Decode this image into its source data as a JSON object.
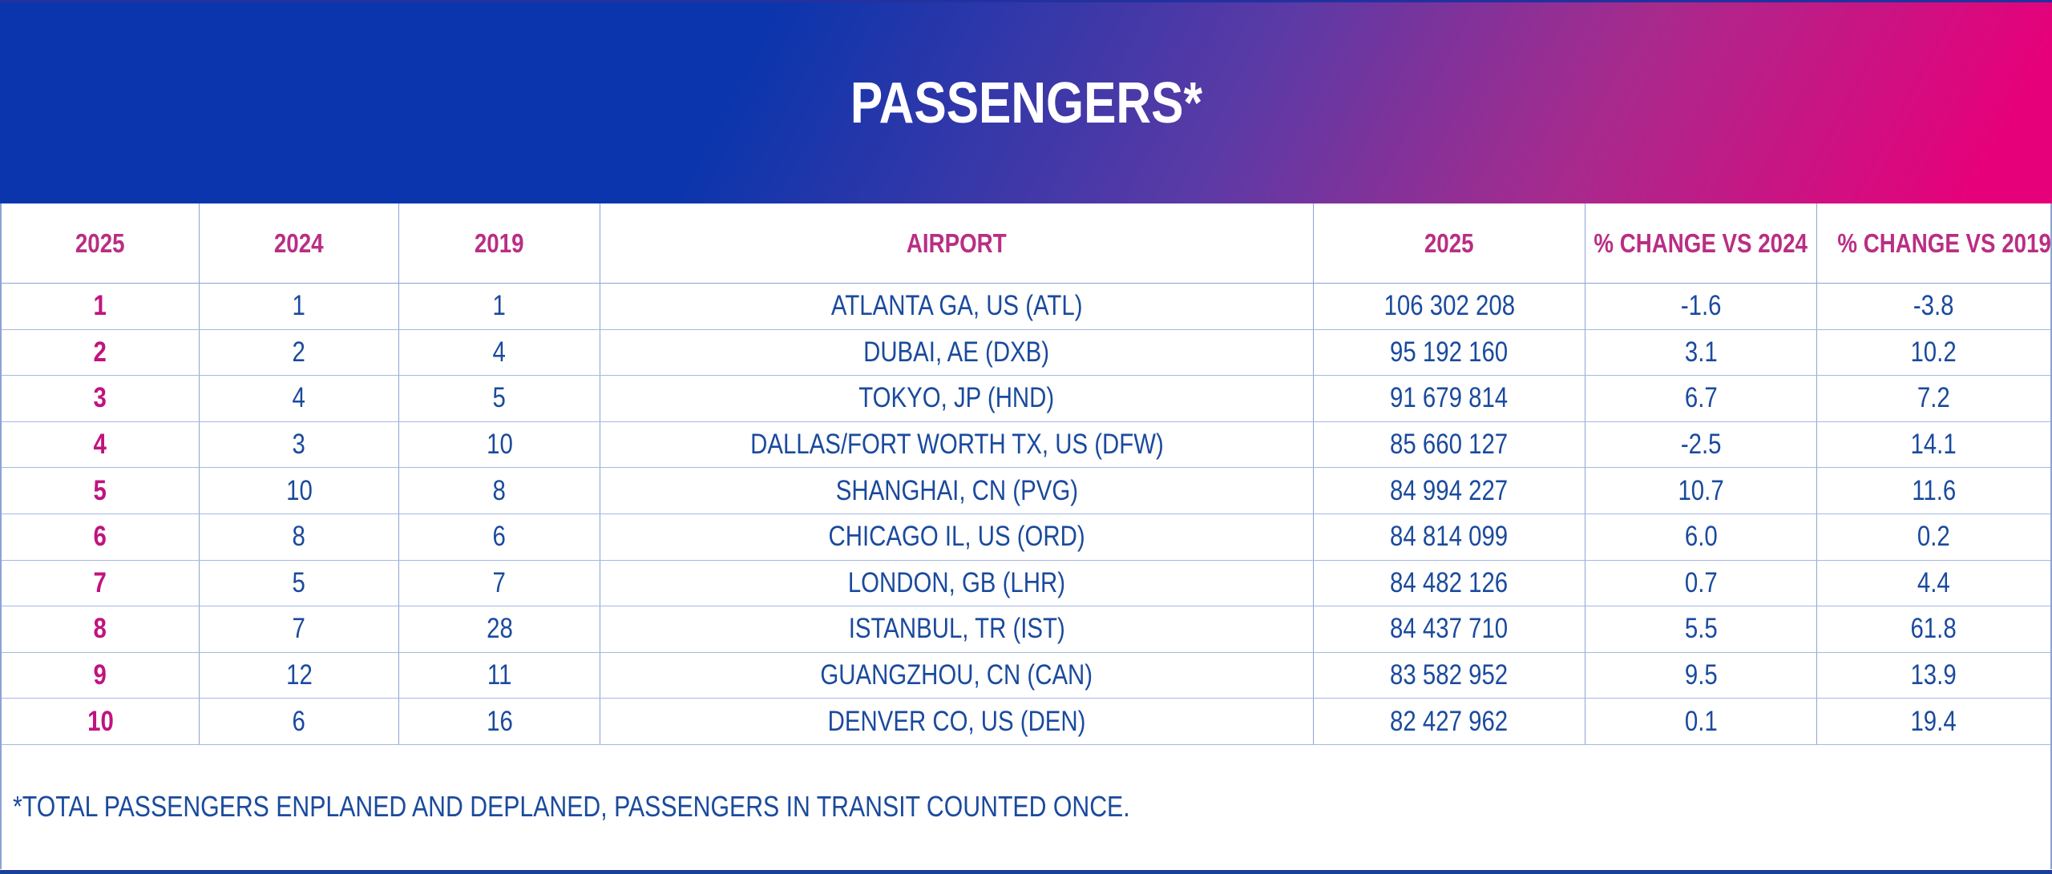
{
  "title": "PASSENGERS*",
  "footnote": "*TOTAL PASSENGERS ENPLANED AND DEPLANED, PASSENGERS IN TRANSIT COUNTED ONCE.",
  "table": {
    "headers": {
      "rank2025": "2025",
      "rank2024": "2024",
      "rank2019": "2019",
      "airport": "AIRPORT",
      "passengers2025": "2025",
      "chg2024": "% CHANGE VS 2024",
      "chg2019": "% CHANGE VS 2019"
    },
    "rows": [
      {
        "rank2025": "1",
        "rank2024": "1",
        "rank2019": "1",
        "airport": "ATLANTA GA, US (ATL)",
        "passengers2025": "106 302 208",
        "chg2024": "-1.6",
        "chg2019": "-3.8"
      },
      {
        "rank2025": "2",
        "rank2024": "2",
        "rank2019": "4",
        "airport": "DUBAI, AE (DXB)",
        "passengers2025": "95 192 160",
        "chg2024": "3.1",
        "chg2019": "10.2"
      },
      {
        "rank2025": "3",
        "rank2024": "4",
        "rank2019": "5",
        "airport": "TOKYO, JP (HND)",
        "passengers2025": "91 679 814",
        "chg2024": "6.7",
        "chg2019": "7.2"
      },
      {
        "rank2025": "4",
        "rank2024": "3",
        "rank2019": "10",
        "airport": "DALLAS/FORT WORTH TX, US (DFW)",
        "passengers2025": "85 660 127",
        "chg2024": "-2.5",
        "chg2019": "14.1"
      },
      {
        "rank2025": "5",
        "rank2024": "10",
        "rank2019": "8",
        "airport": "SHANGHAI, CN (PVG)",
        "passengers2025": "84 994 227",
        "chg2024": "10.7",
        "chg2019": "11.6"
      },
      {
        "rank2025": "6",
        "rank2024": "8",
        "rank2019": "6",
        "airport": "CHICAGO IL, US (ORD)",
        "passengers2025": "84 814 099",
        "chg2024": "6.0",
        "chg2019": "0.2"
      },
      {
        "rank2025": "7",
        "rank2024": "5",
        "rank2019": "7",
        "airport": "LONDON, GB (LHR)",
        "passengers2025": "84 482 126",
        "chg2024": "0.7",
        "chg2019": "4.4"
      },
      {
        "rank2025": "8",
        "rank2024": "7",
        "rank2019": "28",
        "airport": "ISTANBUL, TR (IST)",
        "passengers2025": "84 437 710",
        "chg2024": "5.5",
        "chg2019": "61.8"
      },
      {
        "rank2025": "9",
        "rank2024": "12",
        "rank2019": "11",
        "airport": "GUANGZHOU, CN (CAN)",
        "passengers2025": "83 582 952",
        "chg2024": "9.5",
        "chg2019": "13.9"
      },
      {
        "rank2025": "10",
        "rank2024": "6",
        "rank2019": "16",
        "airport": "DENVER CO, US (DEN)",
        "passengers2025": "82 427 962",
        "chg2024": "0.1",
        "chg2019": "19.4"
      }
    ]
  },
  "chart_data": {
    "type": "table",
    "title": "PASSENGERS*",
    "columns": [
      "RANK 2025",
      "RANK 2024",
      "RANK 2019",
      "AIRPORT",
      "PASSENGERS 2025",
      "% CHANGE VS 2024",
      "% CHANGE VS 2019"
    ],
    "rows": [
      [
        1,
        1,
        1,
        "ATLANTA GA, US (ATL)",
        106302208,
        -1.6,
        -3.8
      ],
      [
        2,
        2,
        4,
        "DUBAI, AE (DXB)",
        95192160,
        3.1,
        10.2
      ],
      [
        3,
        4,
        5,
        "TOKYO, JP (HND)",
        91679814,
        6.7,
        7.2
      ],
      [
        4,
        3,
        10,
        "DALLAS/FORT WORTH TX, US (DFW)",
        85660127,
        -2.5,
        14.1
      ],
      [
        5,
        10,
        8,
        "SHANGHAI, CN (PVG)",
        84994227,
        10.7,
        11.6
      ],
      [
        6,
        8,
        6,
        "CHICAGO IL, US (ORD)",
        84814099,
        6.0,
        0.2
      ],
      [
        7,
        5,
        7,
        "LONDON, GB (LHR)",
        84482126,
        0.7,
        4.4
      ],
      [
        8,
        7,
        28,
        "ISTANBUL, TR (IST)",
        84437710,
        5.5,
        61.8
      ],
      [
        9,
        12,
        11,
        "GUANGZHOU, CN (CAN)",
        83582952,
        9.5,
        13.9
      ],
      [
        10,
        6,
        16,
        "DENVER CO, US (DEN)",
        82427962,
        0.1,
        19.4
      ]
    ],
    "footnote": "*TOTAL PASSENGERS ENPLANED AND DEPLANED, PASSENGERS IN TRANSIT COUNTED ONCE."
  },
  "colors": {
    "gradient_blue": "#0b35ac",
    "gradient_violet": "#5b3aa6",
    "gradient_magenta": "#a82a8d",
    "gradient_pink": "#e6017a",
    "header_label": "#b92e84",
    "rank_highlight": "#c11380",
    "data_text": "#1a4a9d",
    "grid_line": "#8ca3d6",
    "row_line": "#a6b7e2",
    "heavy_border": "#1c3f97",
    "top_border": "#23319f"
  }
}
